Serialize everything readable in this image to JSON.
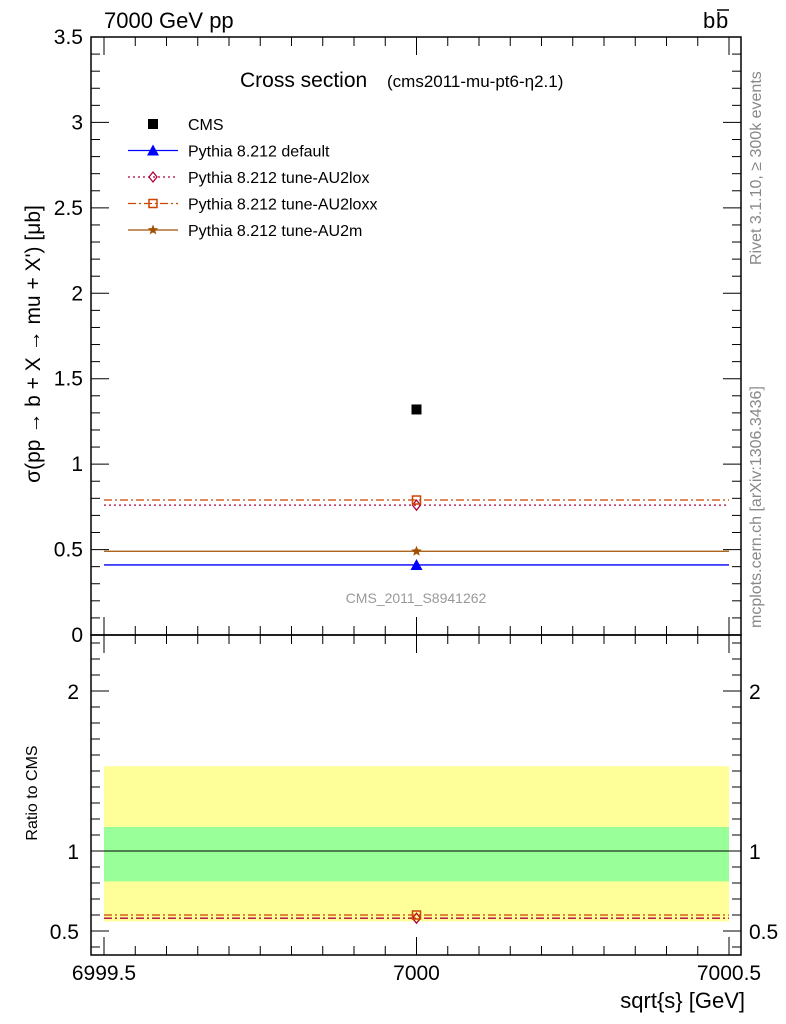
{
  "header": {
    "left": "7000 GeV pp",
    "right": "b",
    "right_bar": "b"
  },
  "side_labels": {
    "rivet": "Rivet 3.1.10, ≥ 300k events",
    "mcplots": "mcplots.cern.ch [arXiv:1306.3436]"
  },
  "colors": {
    "cms": "#000000",
    "default": "#0000ff",
    "au2lox": "#b00040",
    "au2loxx": "#cc4400",
    "au2m": "#a05000",
    "band_outer": "#ffff99",
    "band_inner": "#99ff99"
  },
  "chart_data": [
    {
      "type": "scatter",
      "title": "Cross section",
      "subtitle": "(cms2011-mu-pt6-η2.1)",
      "xlabel": "",
      "ylabel": "σ(pp → b + X → mu + X') [μb]",
      "xlim": [
        6999.5,
        7000.5
      ],
      "ylim": [
        0,
        3.5
      ],
      "yticks": [
        "0",
        "0.5",
        "1",
        "1.5",
        "2",
        "2.5",
        "3",
        "3.5"
      ],
      "watermark": "CMS_2011_S8941262",
      "series": [
        {
          "name": "CMS",
          "x": [
            7000
          ],
          "y": [
            1.32
          ],
          "marker": "square",
          "color": "#000000"
        },
        {
          "name": "Pythia 8.212 default",
          "x": [
            7000
          ],
          "y": [
            0.41
          ],
          "marker": "triangle",
          "color": "#0000ff",
          "dash": ""
        },
        {
          "name": "Pythia 8.212 tune-AU2lox",
          "x": [
            7000
          ],
          "y": [
            0.76
          ],
          "marker": "diamond",
          "color": "#b00040",
          "dash": "2,3"
        },
        {
          "name": "Pythia 8.212 tune-AU2loxx",
          "x": [
            7000
          ],
          "y": [
            0.79
          ],
          "marker": "opensquare",
          "color": "#cc4400",
          "dash": "8,3,2,3"
        },
        {
          "name": "Pythia 8.212 tune-AU2m",
          "x": [
            7000
          ],
          "y": [
            0.49
          ],
          "marker": "star",
          "color": "#a05000",
          "dash": ""
        }
      ],
      "legend": "top-left"
    },
    {
      "type": "scatter",
      "title": "",
      "xlabel": "sqrt{s} [GeV]",
      "ylabel": "Ratio to CMS",
      "xlim": [
        6999.5,
        7000.5
      ],
      "ylim": [
        0.35,
        2.35
      ],
      "xticks": [
        "6999.5",
        "7000",
        "7000.5"
      ],
      "yticks": [
        "0.5",
        "1",
        "2"
      ],
      "band_inner": [
        0.81,
        1.15
      ],
      "band_outer": [
        0.56,
        1.53
      ],
      "series": [
        {
          "name": "Pythia 8.212 tune-AU2lox",
          "y": [
            0.58
          ]
        },
        {
          "name": "Pythia 8.212 tune-AU2loxx",
          "y": [
            0.6
          ]
        }
      ]
    }
  ]
}
